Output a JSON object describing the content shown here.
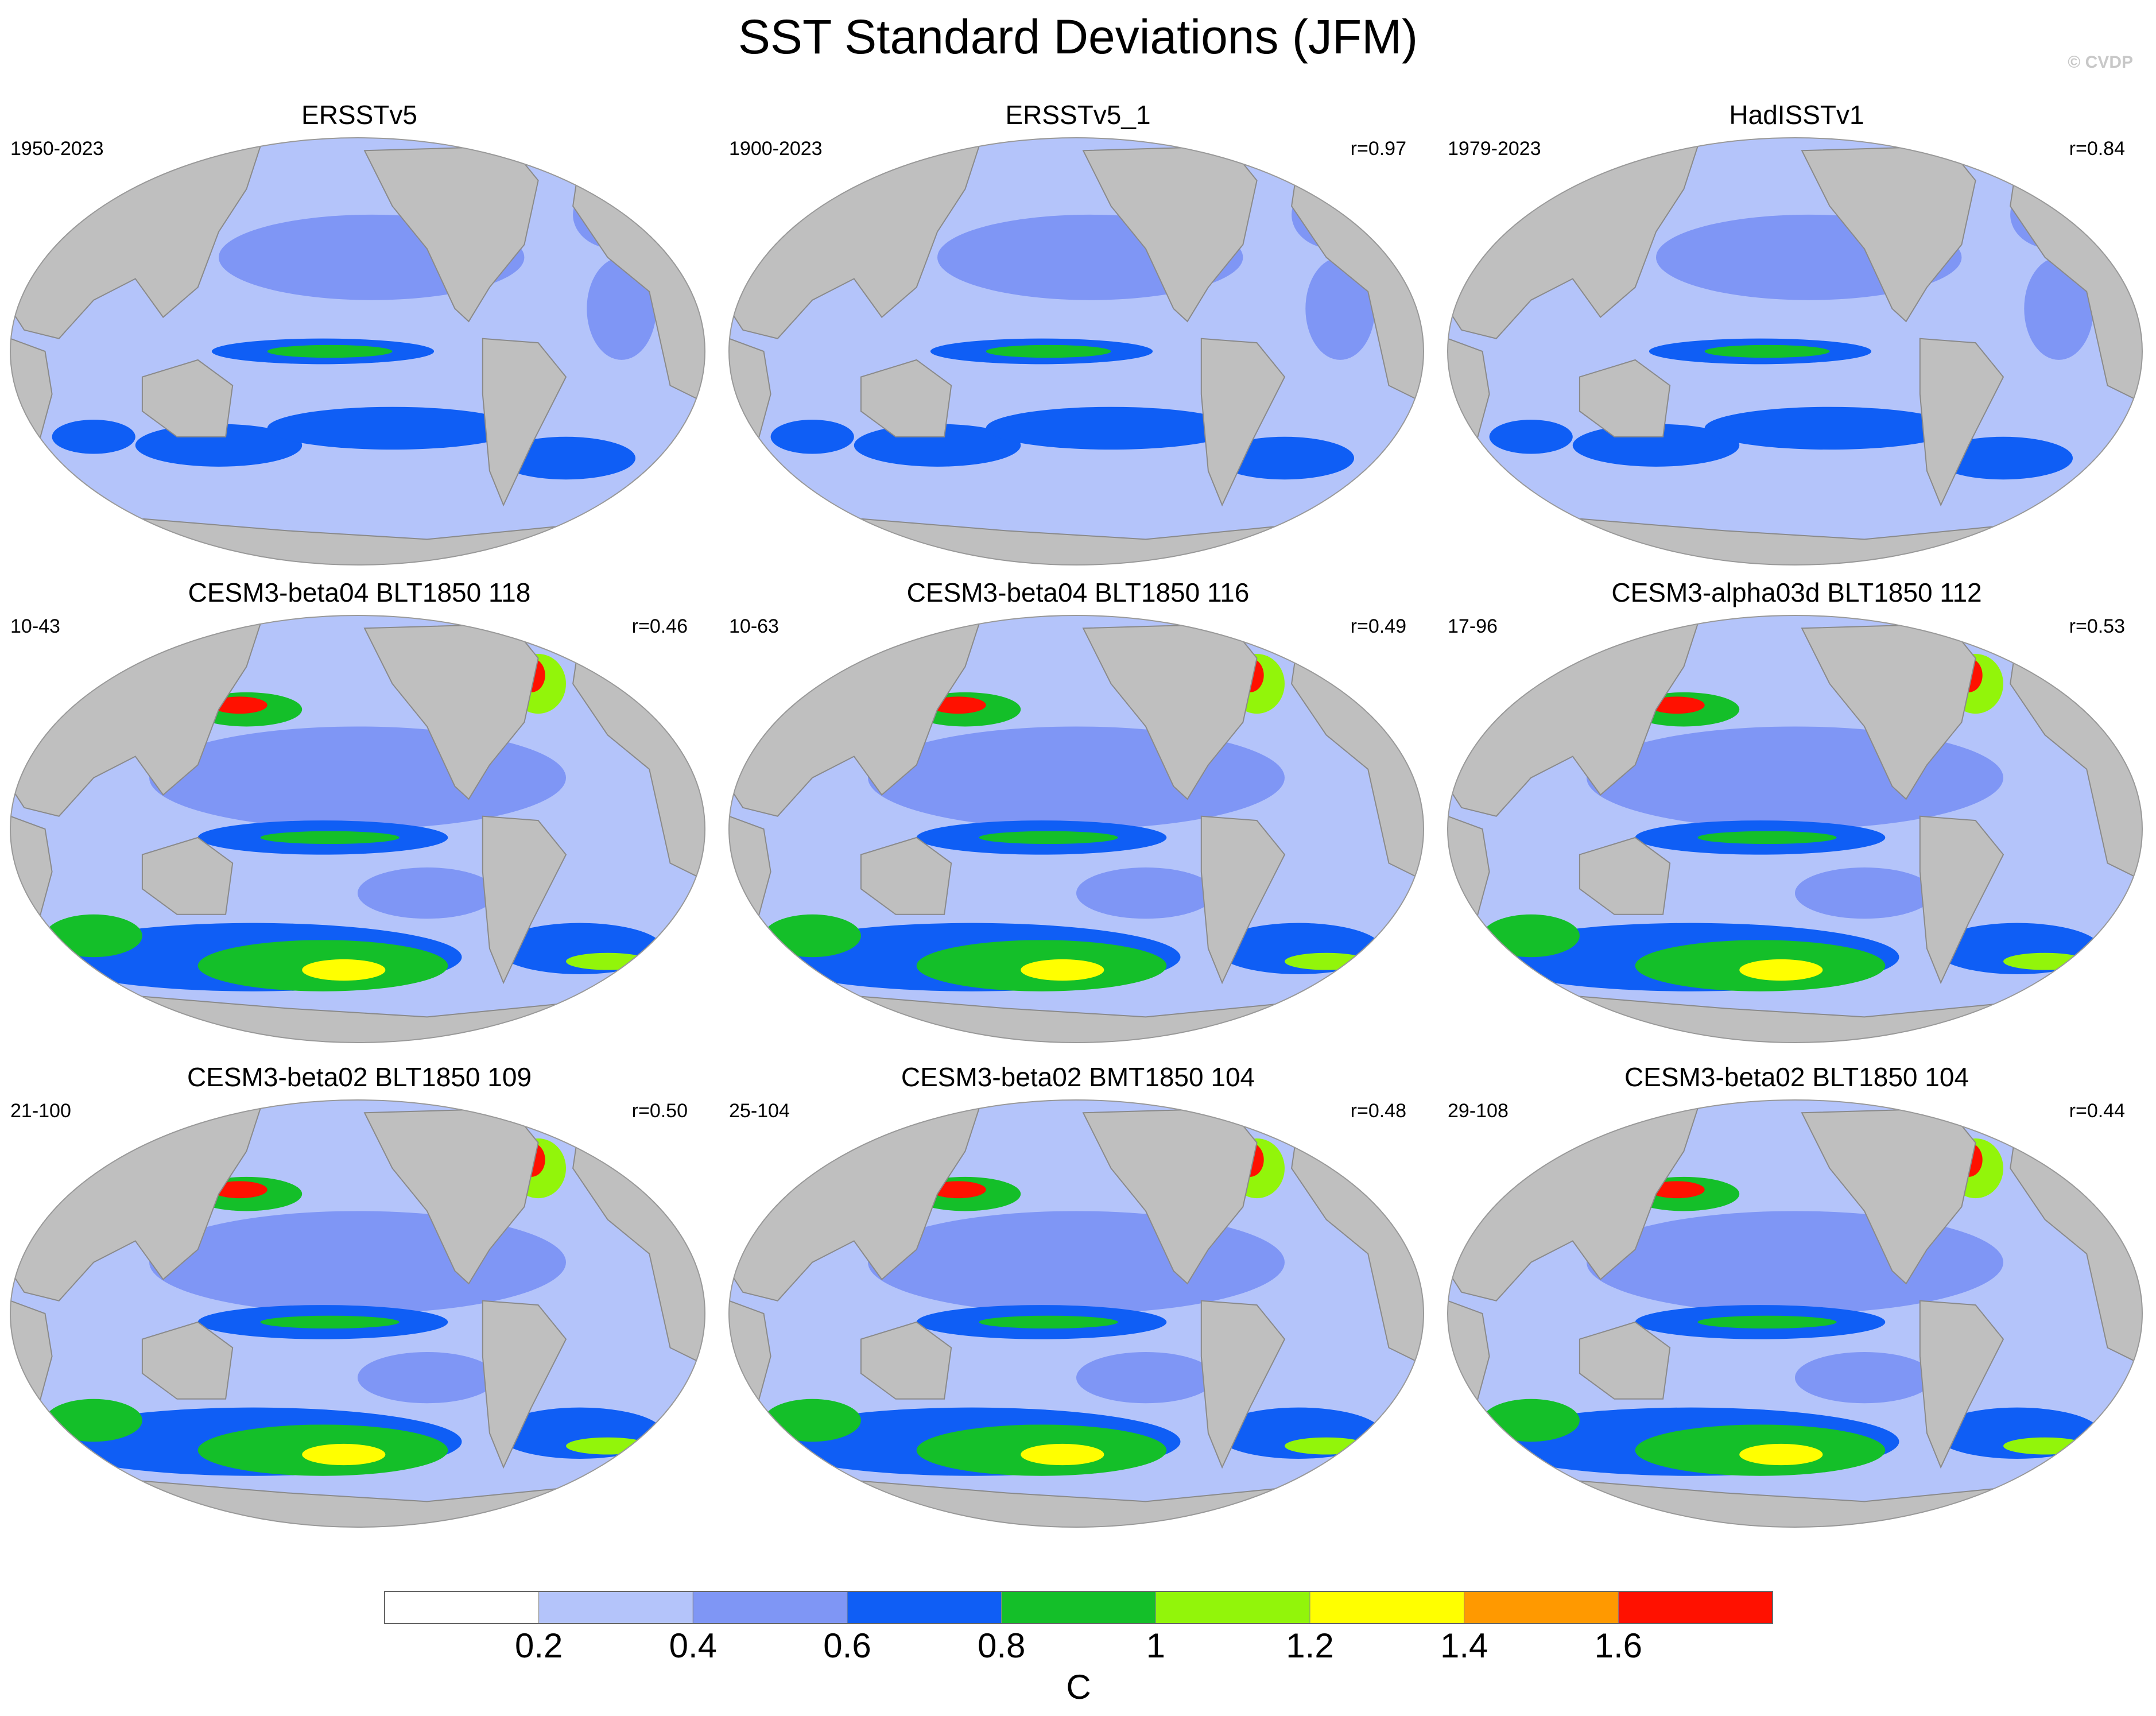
{
  "title": "SST Standard Deviations (JFM)",
  "watermark": "© CVDP",
  "chart_data": {
    "type": "heatmap",
    "title": "SST Standard Deviations (JFM)",
    "units": "C",
    "colorbar": {
      "levels": [
        "0.2",
        "0.4",
        "0.6",
        "0.8",
        "1",
        "1.2",
        "1.4",
        "1.6"
      ],
      "colors": [
        "#ffffff",
        "#b4c4fa",
        "#7f96f5",
        "#0f5ef5",
        "#14bf29",
        "#92f50a",
        "#ffff00",
        "#ff9900",
        "#ff1100"
      ]
    },
    "panels": [
      {
        "title": "ERSSTv5",
        "years": "1950-2023",
        "r": "",
        "intensity": 0
      },
      {
        "title": "ERSSTv5_1",
        "years": "1900-2023",
        "r": "r=0.97",
        "intensity": 0
      },
      {
        "title": "HadISSTv1",
        "years": "1979-2023",
        "r": "r=0.84",
        "intensity": 0
      },
      {
        "title": "CESM3-beta04 BLT1850 118",
        "years": "10-43",
        "r": "r=0.46",
        "intensity": 1
      },
      {
        "title": "CESM3-beta04 BLT1850 116",
        "years": "10-63",
        "r": "r=0.49",
        "intensity": 1
      },
      {
        "title": "CESM3-alpha03d BLT1850 112",
        "years": "17-96",
        "r": "r=0.53",
        "intensity": 1
      },
      {
        "title": "CESM3-beta02 BLT1850 109",
        "years": "21-100",
        "r": "r=0.50",
        "intensity": 1
      },
      {
        "title": "CESM3-beta02 BMT1850 104",
        "years": "25-104",
        "r": "r=0.48",
        "intensity": 1
      },
      {
        "title": "CESM3-beta02 BLT1850 104",
        "years": "29-108",
        "r": "r=0.44",
        "intensity": 1
      }
    ]
  }
}
